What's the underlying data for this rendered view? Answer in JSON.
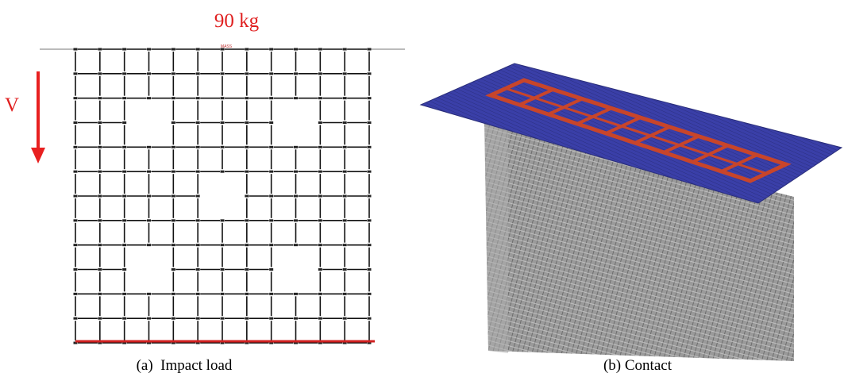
{
  "panels": [
    {
      "annotations": {
        "load": "90 kg",
        "velocity": "V",
        "mass": "MASS"
      },
      "caption": "(a)  Impact load"
    },
    {
      "caption": "(b) Contact"
    }
  ]
}
